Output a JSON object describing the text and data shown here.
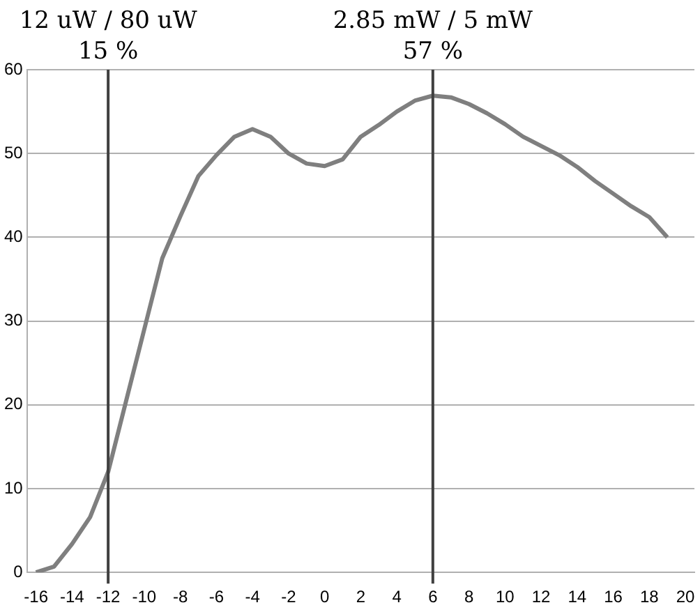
{
  "chart_data": {
    "type": "line",
    "x": [
      -16,
      -15,
      -14,
      -13,
      -12,
      -11,
      -10,
      -9,
      -8,
      -7,
      -6,
      -5,
      -4,
      -3,
      -2,
      -1,
      0,
      1,
      2,
      3,
      4,
      5,
      6,
      7,
      8,
      9,
      10,
      11,
      12,
      13,
      14,
      15,
      16,
      17,
      18,
      19
    ],
    "series": [
      {
        "color": "#7f7f7f",
        "values": [
          0,
          0.7,
          3.4,
          6.6,
          12,
          20.5,
          29,
          37.5,
          42.5,
          47.3,
          49.8,
          52,
          52.9,
          52,
          50,
          48.8,
          48.5,
          49.3,
          52,
          53.4,
          55,
          56.3,
          56.9,
          56.7,
          55.9,
          54.8,
          53.5,
          52,
          50.9,
          49.8,
          48.4,
          46.7,
          45.2,
          43.7,
          42.4,
          40
        ]
      }
    ],
    "xlim": [
      -16.5,
      20.5
    ],
    "xticks": [
      -16,
      -14,
      -12,
      -10,
      -8,
      -6,
      -4,
      -2,
      0,
      2,
      4,
      6,
      8,
      10,
      12,
      14,
      16,
      18,
      20
    ],
    "ylim": [
      0,
      60
    ],
    "yticks": [
      0,
      10,
      20,
      30,
      40,
      50,
      60
    ],
    "grid": "y",
    "marker": "none",
    "line_style": "solid",
    "ref_lines": [
      {
        "axis": "x",
        "value": -12,
        "label": "12 uW / 80 uW\n15 %",
        "color": "#404040"
      },
      {
        "axis": "x",
        "value": 6,
        "label": "2.85 mW / 5 mW\n57 %",
        "color": "#404040"
      }
    ]
  }
}
